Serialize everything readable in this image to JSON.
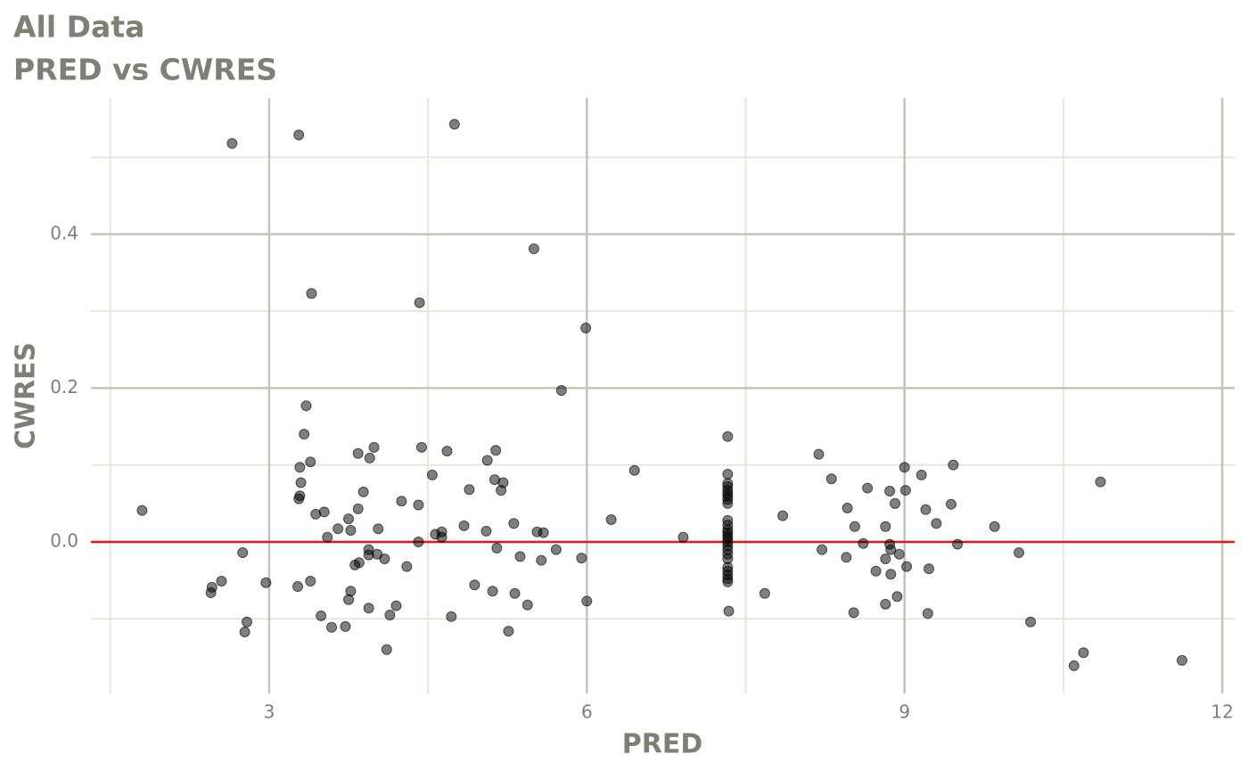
{
  "chart_data": {
    "type": "scatter",
    "title": "All Data",
    "subtitle": "PRED vs CWRES",
    "x_label": "PRED",
    "y_label": "CWRES",
    "xlim": [
      1.317,
      12.117
    ],
    "ylim": [
      -0.197,
      0.577
    ],
    "xticks": [
      3,
      6,
      9,
      12
    ],
    "yticks": [
      {
        "value": 0,
        "label": "0.0"
      },
      0.2,
      0.4
    ],
    "xminor": [
      1.5,
      4.5,
      7.5,
      10.5
    ],
    "yminor": [
      -0.1,
      0.1,
      0.3,
      0.5
    ],
    "grid": true,
    "hline": 0,
    "hline_color": "#e31a1c",
    "color": "rgba(0,0,0,0.5)",
    "x": [
      1.8,
      2.65,
      3.28,
      4.75,
      5.5,
      3.4,
      4.42,
      5.99,
      5.76,
      3.35,
      3.33,
      7.33,
      3.39,
      3.29,
      3.84,
      3.95,
      3.99,
      4.44,
      4.68,
      5.06,
      5.14,
      4.54,
      5.13,
      5.21,
      5.19,
      4.89,
      6.45,
      3.3,
      3.29,
      3.28,
      3.89,
      3.44,
      3.52,
      3.84,
      4.25,
      4.41,
      3.75,
      3.65,
      3.77,
      4.03,
      3.55,
      4.57,
      4.63,
      4.63,
      4.84,
      5.05,
      5.31,
      5.53,
      5.59,
      4.41,
      5.15,
      5.71,
      5.37,
      5.57,
      5.95,
      6.23,
      6.91,
      6.0,
      2.75,
      2.55,
      2.46,
      2.45,
      2.97,
      2.79,
      2.77,
      3.27,
      3.39,
      3.49,
      3.59,
      3.72,
      3.75,
      3.77,
      3.81,
      3.85,
      3.94,
      3.94,
      4.02,
      4.09,
      3.94,
      4.14,
      4.2,
      4.3,
      4.11,
      4.72,
      4.94,
      5.11,
      5.32,
      5.44,
      5.26,
      7.33,
      7.33,
      7.33,
      7.33,
      7.33,
      7.33,
      7.33,
      7.33,
      7.33,
      7.33,
      7.33,
      7.33,
      7.33,
      7.33,
      7.33,
      7.33,
      7.33,
      7.33,
      7.33,
      7.33,
      7.33,
      7.33,
      7.33,
      7.33,
      7.34,
      7.68,
      7.85,
      8.19,
      8.22,
      8.31,
      8.45,
      8.46,
      8.53,
      8.52,
      8.61,
      8.65,
      8.73,
      8.82,
      8.82,
      8.82,
      8.86,
      8.86,
      8.87,
      8.87,
      8.91,
      8.95,
      8.93,
      9.0,
      9.01,
      9.02,
      9.16,
      9.2,
      9.23,
      9.22,
      9.3,
      9.44,
      9.46,
      9.5,
      9.85,
      10.08,
      10.19,
      10.6,
      10.69,
      10.85,
      11.62
    ],
    "values": [
      0.041,
      0.518,
      0.529,
      0.543,
      0.381,
      0.323,
      0.311,
      0.278,
      0.197,
      0.177,
      0.14,
      0.137,
      0.104,
      0.097,
      0.115,
      0.109,
      0.123,
      0.123,
      0.118,
      0.106,
      0.119,
      0.087,
      0.081,
      0.077,
      0.067,
      0.068,
      0.093,
      0.077,
      0.06,
      0.056,
      0.065,
      0.036,
      0.039,
      0.043,
      0.053,
      0.048,
      0.03,
      0.017,
      0.015,
      0.017,
      0.006,
      0.01,
      0.013,
      0.006,
      0.021,
      0.014,
      0.024,
      0.013,
      0.012,
      0.0,
      -0.008,
      -0.01,
      -0.019,
      -0.024,
      -0.021,
      0.029,
      0.006,
      -0.077,
      -0.014,
      -0.051,
      -0.059,
      -0.066,
      -0.053,
      -0.104,
      -0.117,
      -0.058,
      -0.051,
      -0.096,
      -0.111,
      -0.11,
      -0.075,
      -0.064,
      -0.03,
      -0.027,
      -0.01,
      -0.017,
      -0.016,
      -0.022,
      -0.086,
      -0.095,
      -0.083,
      -0.032,
      -0.14,
      -0.097,
      -0.056,
      -0.064,
      -0.067,
      -0.082,
      -0.116,
      0.088,
      0.076,
      0.072,
      0.067,
      0.063,
      0.059,
      0.055,
      0.05,
      0.028,
      0.022,
      0.016,
      0.012,
      0.008,
      0.004,
      0.0,
      -0.005,
      -0.01,
      -0.016,
      -0.022,
      -0.033,
      -0.038,
      -0.043,
      -0.048,
      -0.052,
      -0.09,
      -0.067,
      0.034,
      0.114,
      -0.01,
      0.082,
      -0.02,
      0.044,
      0.02,
      -0.092,
      -0.002,
      0.07,
      -0.038,
      0.02,
      -0.081,
      -0.022,
      0.066,
      -0.003,
      -0.01,
      -0.042,
      0.05,
      -0.016,
      -0.071,
      0.097,
      0.067,
      -0.032,
      0.087,
      0.042,
      -0.035,
      -0.093,
      0.024,
      0.049,
      0.1,
      -0.003,
      0.02,
      -0.014,
      -0.104,
      -0.161,
      -0.144,
      0.078,
      -0.154
    ]
  }
}
